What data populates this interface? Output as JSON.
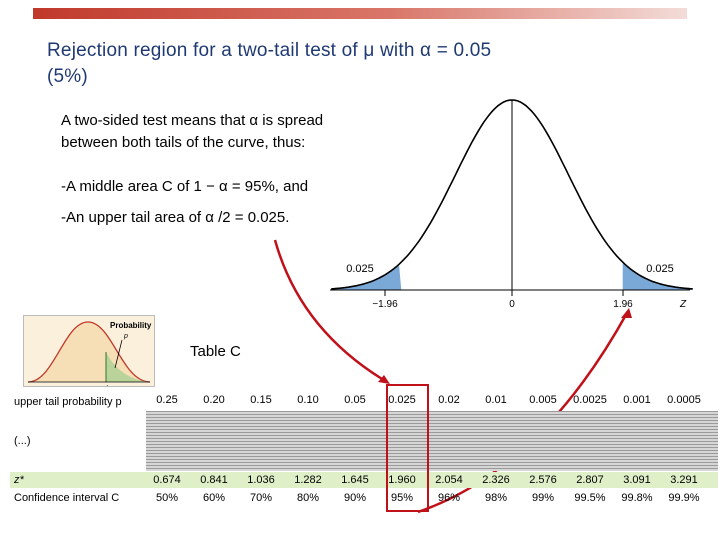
{
  "slide": {
    "title_line1": "Rejection region for a two-tail test of μ with α = 0.05",
    "title_line2": "(5%)",
    "body_line1": "A two-sided test means that α is spread",
    "body_line2": "between both tails of the curve, thus:",
    "body_line3": "-A middle area C of 1 − α = 95%, and",
    "body_line4": "-An upper tail area of α /2 = 0.025."
  },
  "curve": {
    "left_tail_value": "0.025",
    "right_tail_value": "0.025",
    "tick_left": "−1.96",
    "tick_center": "0",
    "tick_right": "1.96",
    "axis_label": "Z",
    "tail_color": "#7aa9d8"
  },
  "thumbnail": {
    "label": "Probability",
    "p_label": "p",
    "z_label": "z*"
  },
  "table": {
    "title": "Table C",
    "row_upper_label": "upper tail probability p",
    "upper_values": [
      "0.25",
      "0.20",
      "0.15",
      "0.10",
      "0.05",
      "0.025",
      "0.02",
      "0.01",
      "0.005",
      "0.0025",
      "0.001",
      "0.0005"
    ],
    "ellipsis_label": "(...)",
    "row_z_label": "z*",
    "z_values": [
      "0.674",
      "0.841",
      "1.036",
      "1.282",
      "1.645",
      "1.960",
      "2.054",
      "2.326",
      "2.576",
      "2.807",
      "3.091",
      "3.291"
    ],
    "row_ci_label": "Confidence interval C",
    "ci_values": [
      "50%",
      "60%",
      "70%",
      "80%",
      "90%",
      "95%",
      "96%",
      "98%",
      "99%",
      "99.5%",
      "99.8%",
      "99.9%"
    ],
    "highlight_color": "#c0111a"
  }
}
